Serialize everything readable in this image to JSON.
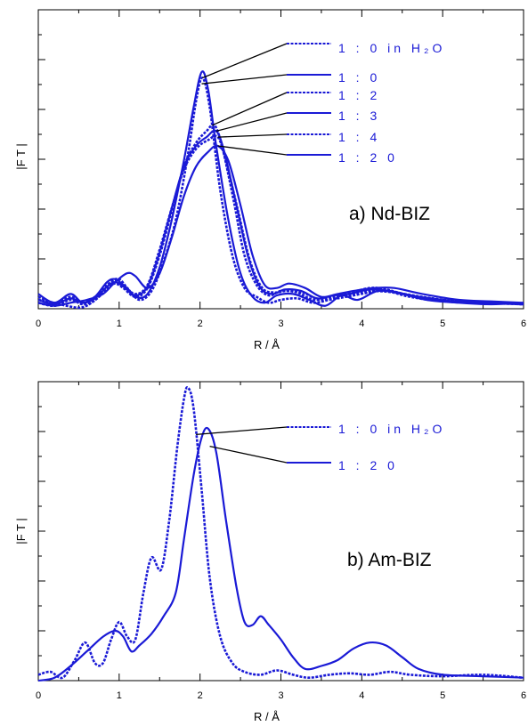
{
  "chart_data": [
    {
      "type": "line",
      "panel_label": "a) Nd-BIZ",
      "xlabel": "R  / Å",
      "ylabel": "|F T |",
      "xlim": [
        0,
        6
      ],
      "ylim": [
        0,
        1.0
      ],
      "xticks": [
        "0",
        "1",
        "2",
        "3",
        "4",
        "5",
        "6"
      ],
      "y_tick_labels": "none",
      "color": "#1a1ad6",
      "series": [
        {
          "name": "1 : 0  in  H₂O",
          "style": "dashed",
          "points": [
            [
              0,
              0.03
            ],
            [
              0.2,
              0.02
            ],
            [
              0.35,
              0.01
            ],
            [
              0.55,
              0.005
            ],
            [
              0.75,
              0.04
            ],
            [
              0.9,
              0.09
            ],
            [
              1.0,
              0.1
            ],
            [
              1.1,
              0.07
            ],
            [
              1.25,
              0.03
            ],
            [
              1.4,
              0.06
            ],
            [
              1.55,
              0.16
            ],
            [
              1.7,
              0.3
            ],
            [
              1.85,
              0.52
            ],
            [
              1.95,
              0.7
            ],
            [
              2.03,
              0.78
            ],
            [
              2.12,
              0.68
            ],
            [
              2.25,
              0.4
            ],
            [
              2.4,
              0.18
            ],
            [
              2.55,
              0.07
            ],
            [
              2.7,
              0.04
            ],
            [
              2.85,
              0.02
            ],
            [
              3.0,
              0.03
            ],
            [
              3.2,
              0.035
            ],
            [
              3.4,
              0.02
            ],
            [
              3.6,
              0.03
            ],
            [
              3.8,
              0.04
            ],
            [
              4.1,
              0.055
            ],
            [
              4.3,
              0.06
            ],
            [
              4.6,
              0.04
            ],
            [
              5.0,
              0.025
            ],
            [
              5.5,
              0.02
            ],
            [
              6,
              0.015
            ]
          ]
        },
        {
          "name": "1 : 0",
          "style": "solid",
          "points": [
            [
              0,
              0.05
            ],
            [
              0.2,
              0.02
            ],
            [
              0.4,
              0.05
            ],
            [
              0.55,
              0.02
            ],
            [
              0.7,
              0.04
            ],
            [
              0.85,
              0.09
            ],
            [
              0.95,
              0.1
            ],
            [
              1.05,
              0.08
            ],
            [
              1.2,
              0.04
            ],
            [
              1.35,
              0.05
            ],
            [
              1.5,
              0.14
            ],
            [
              1.65,
              0.3
            ],
            [
              1.8,
              0.5
            ],
            [
              1.92,
              0.68
            ],
            [
              2.02,
              0.8
            ],
            [
              2.1,
              0.74
            ],
            [
              2.2,
              0.55
            ],
            [
              2.35,
              0.3
            ],
            [
              2.5,
              0.12
            ],
            [
              2.65,
              0.04
            ],
            [
              2.8,
              0.02
            ],
            [
              2.95,
              0.045
            ],
            [
              3.15,
              0.05
            ],
            [
              3.35,
              0.03
            ],
            [
              3.55,
              0.01
            ],
            [
              3.75,
              0.045
            ],
            [
              3.95,
              0.03
            ],
            [
              4.2,
              0.06
            ],
            [
              4.5,
              0.05
            ],
            [
              4.8,
              0.03
            ],
            [
              5.2,
              0.02
            ],
            [
              5.6,
              0.015
            ],
            [
              6,
              0.02
            ]
          ]
        },
        {
          "name": "1 : 2",
          "style": "dashed",
          "points": [
            [
              0,
              0.02
            ],
            [
              0.2,
              0.01
            ],
            [
              0.4,
              0.03
            ],
            [
              0.55,
              0.015
            ],
            [
              0.7,
              0.03
            ],
            [
              0.85,
              0.07
            ],
            [
              0.95,
              0.085
            ],
            [
              1.05,
              0.07
            ],
            [
              1.2,
              0.04
            ],
            [
              1.35,
              0.07
            ],
            [
              1.5,
              0.18
            ],
            [
              1.65,
              0.33
            ],
            [
              1.8,
              0.48
            ],
            [
              1.95,
              0.56
            ],
            [
              2.08,
              0.6
            ],
            [
              2.18,
              0.62
            ],
            [
              2.28,
              0.54
            ],
            [
              2.42,
              0.36
            ],
            [
              2.55,
              0.18
            ],
            [
              2.7,
              0.08
            ],
            [
              2.85,
              0.045
            ],
            [
              3.0,
              0.06
            ],
            [
              3.2,
              0.055
            ],
            [
              3.4,
              0.03
            ],
            [
              3.6,
              0.04
            ],
            [
              3.8,
              0.05
            ],
            [
              4.1,
              0.07
            ],
            [
              4.3,
              0.065
            ],
            [
              4.6,
              0.045
            ],
            [
              5.0,
              0.03
            ],
            [
              5.5,
              0.02
            ],
            [
              6,
              0.015
            ]
          ]
        },
        {
          "name": "1 : 3",
          "style": "solid",
          "points": [
            [
              0,
              0.03
            ],
            [
              0.2,
              0.015
            ],
            [
              0.4,
              0.035
            ],
            [
              0.55,
              0.02
            ],
            [
              0.7,
              0.035
            ],
            [
              0.85,
              0.075
            ],
            [
              0.95,
              0.09
            ],
            [
              1.05,
              0.075
            ],
            [
              1.2,
              0.045
            ],
            [
              1.35,
              0.075
            ],
            [
              1.5,
              0.19
            ],
            [
              1.65,
              0.34
            ],
            [
              1.8,
              0.48
            ],
            [
              1.95,
              0.55
            ],
            [
              2.08,
              0.58
            ],
            [
              2.2,
              0.6
            ],
            [
              2.3,
              0.53
            ],
            [
              2.45,
              0.35
            ],
            [
              2.6,
              0.17
            ],
            [
              2.75,
              0.07
            ],
            [
              2.9,
              0.05
            ],
            [
              3.05,
              0.065
            ],
            [
              3.25,
              0.06
            ],
            [
              3.45,
              0.035
            ],
            [
              3.65,
              0.045
            ],
            [
              3.85,
              0.05
            ],
            [
              4.1,
              0.065
            ],
            [
              4.35,
              0.06
            ],
            [
              4.7,
              0.04
            ],
            [
              5.1,
              0.025
            ],
            [
              5.6,
              0.02
            ],
            [
              6,
              0.015
            ]
          ]
        },
        {
          "name": "1 : 4",
          "style": "dashed",
          "points": [
            [
              0,
              0.04
            ],
            [
              0.2,
              0.02
            ],
            [
              0.4,
              0.04
            ],
            [
              0.55,
              0.02
            ],
            [
              0.7,
              0.04
            ],
            [
              0.85,
              0.08
            ],
            [
              0.95,
              0.095
            ],
            [
              1.05,
              0.08
            ],
            [
              1.2,
              0.05
            ],
            [
              1.35,
              0.08
            ],
            [
              1.5,
              0.2
            ],
            [
              1.65,
              0.34
            ],
            [
              1.8,
              0.47
            ],
            [
              1.95,
              0.54
            ],
            [
              2.1,
              0.57
            ],
            [
              2.22,
              0.58
            ],
            [
              2.32,
              0.5
            ],
            [
              2.47,
              0.33
            ],
            [
              2.62,
              0.16
            ],
            [
              2.77,
              0.07
            ],
            [
              2.92,
              0.055
            ],
            [
              3.07,
              0.06
            ],
            [
              3.27,
              0.055
            ],
            [
              3.47,
              0.03
            ],
            [
              3.67,
              0.04
            ],
            [
              3.87,
              0.05
            ],
            [
              4.1,
              0.06
            ],
            [
              4.4,
              0.055
            ],
            [
              4.75,
              0.04
            ],
            [
              5.2,
              0.025
            ],
            [
              5.7,
              0.02
            ],
            [
              6,
              0.015
            ]
          ]
        },
        {
          "name": "1 : 2 0",
          "style": "solid",
          "points": [
            [
              0,
              0.02
            ],
            [
              0.2,
              0.01
            ],
            [
              0.4,
              0.02
            ],
            [
              0.6,
              0.03
            ],
            [
              0.8,
              0.05
            ],
            [
              0.95,
              0.09
            ],
            [
              1.1,
              0.12
            ],
            [
              1.2,
              0.11
            ],
            [
              1.35,
              0.07
            ],
            [
              1.5,
              0.12
            ],
            [
              1.65,
              0.24
            ],
            [
              1.8,
              0.38
            ],
            [
              1.95,
              0.48
            ],
            [
              2.1,
              0.53
            ],
            [
              2.22,
              0.55
            ],
            [
              2.35,
              0.5
            ],
            [
              2.5,
              0.35
            ],
            [
              2.65,
              0.18
            ],
            [
              2.8,
              0.08
            ],
            [
              2.95,
              0.07
            ],
            [
              3.1,
              0.085
            ],
            [
              3.3,
              0.07
            ],
            [
              3.5,
              0.04
            ],
            [
              3.7,
              0.05
            ],
            [
              3.9,
              0.06
            ],
            [
              4.15,
              0.07
            ],
            [
              4.4,
              0.07
            ],
            [
              4.75,
              0.05
            ],
            [
              5.2,
              0.03
            ],
            [
              5.6,
              0.025
            ],
            [
              6,
              0.02
            ]
          ]
        }
      ]
    },
    {
      "type": "line",
      "panel_label": "b) Am-BIZ",
      "xlabel": "R  / Å",
      "ylabel": "|F T |",
      "xlim": [
        0,
        6
      ],
      "ylim": [
        0,
        1.0
      ],
      "xticks": [
        "0",
        "1",
        "2",
        "3",
        "4",
        "5",
        "6"
      ],
      "y_tick_labels": "none",
      "color": "#1a1ad6",
      "series": [
        {
          "name": "1 : 0  in  H₂O",
          "style": "dashed",
          "points": [
            [
              0,
              0.02
            ],
            [
              0.15,
              0.03
            ],
            [
              0.3,
              0.01
            ],
            [
              0.45,
              0.07
            ],
            [
              0.58,
              0.13
            ],
            [
              0.7,
              0.06
            ],
            [
              0.8,
              0.06
            ],
            [
              0.9,
              0.14
            ],
            [
              1.0,
              0.2
            ],
            [
              1.1,
              0.15
            ],
            [
              1.2,
              0.14
            ],
            [
              1.3,
              0.3
            ],
            [
              1.4,
              0.42
            ],
            [
              1.52,
              0.38
            ],
            [
              1.62,
              0.55
            ],
            [
              1.72,
              0.8
            ],
            [
              1.8,
              0.96
            ],
            [
              1.85,
              1.0
            ],
            [
              1.92,
              0.93
            ],
            [
              2.02,
              0.65
            ],
            [
              2.12,
              0.35
            ],
            [
              2.25,
              0.15
            ],
            [
              2.4,
              0.06
            ],
            [
              2.55,
              0.03
            ],
            [
              2.75,
              0.02
            ],
            [
              2.95,
              0.035
            ],
            [
              3.15,
              0.02
            ],
            [
              3.35,
              0.01
            ],
            [
              3.6,
              0.02
            ],
            [
              3.85,
              0.025
            ],
            [
              4.1,
              0.02
            ],
            [
              4.35,
              0.03
            ],
            [
              4.6,
              0.02
            ],
            [
              5.0,
              0.015
            ],
            [
              5.5,
              0.02
            ],
            [
              6,
              0.01
            ]
          ]
        },
        {
          "name": "1 : 2 0",
          "style": "solid",
          "points": [
            [
              0,
              0.0
            ],
            [
              0.2,
              0.01
            ],
            [
              0.4,
              0.05
            ],
            [
              0.6,
              0.1
            ],
            [
              0.8,
              0.15
            ],
            [
              0.95,
              0.17
            ],
            [
              1.05,
              0.15
            ],
            [
              1.15,
              0.1
            ],
            [
              1.25,
              0.12
            ],
            [
              1.4,
              0.16
            ],
            [
              1.55,
              0.22
            ],
            [
              1.7,
              0.3
            ],
            [
              1.8,
              0.48
            ],
            [
              1.92,
              0.7
            ],
            [
              2.02,
              0.83
            ],
            [
              2.1,
              0.86
            ],
            [
              2.2,
              0.78
            ],
            [
              2.32,
              0.55
            ],
            [
              2.45,
              0.32
            ],
            [
              2.55,
              0.2
            ],
            [
              2.65,
              0.19
            ],
            [
              2.75,
              0.22
            ],
            [
              2.85,
              0.19
            ],
            [
              3.0,
              0.14
            ],
            [
              3.15,
              0.08
            ],
            [
              3.3,
              0.04
            ],
            [
              3.5,
              0.05
            ],
            [
              3.7,
              0.07
            ],
            [
              3.9,
              0.11
            ],
            [
              4.1,
              0.13
            ],
            [
              4.3,
              0.12
            ],
            [
              4.5,
              0.08
            ],
            [
              4.7,
              0.04
            ],
            [
              5.0,
              0.02
            ],
            [
              5.5,
              0.015
            ],
            [
              6,
              0.01
            ]
          ]
        }
      ]
    }
  ]
}
